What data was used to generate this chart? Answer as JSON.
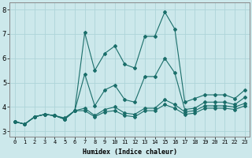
{
  "xlabel": "Humidex (Indice chaleur)",
  "ylabel": "",
  "xlim": [
    -0.5,
    23.5
  ],
  "ylim": [
    2.8,
    8.3
  ],
  "xticks": [
    0,
    1,
    2,
    3,
    4,
    5,
    6,
    7,
    8,
    9,
    10,
    11,
    12,
    13,
    14,
    15,
    16,
    17,
    18,
    19,
    20,
    21,
    22,
    23
  ],
  "yticks": [
    3,
    4,
    5,
    6,
    7,
    8
  ],
  "bg_color": "#cce8eb",
  "grid_color": "#aed4d8",
  "line_color": "#1a6e6a",
  "series": [
    [
      3.4,
      3.3,
      3.6,
      3.7,
      3.65,
      3.55,
      3.85,
      7.05,
      5.5,
      6.2,
      6.5,
      5.75,
      5.6,
      6.9,
      6.9,
      7.9,
      7.2,
      4.2,
      4.35,
      4.5,
      4.5,
      4.5,
      4.35,
      4.7
    ],
    [
      3.4,
      3.3,
      3.6,
      3.7,
      3.65,
      3.5,
      3.85,
      5.35,
      4.05,
      4.7,
      4.9,
      4.3,
      4.2,
      5.25,
      5.25,
      6.0,
      5.4,
      3.9,
      3.95,
      4.2,
      4.2,
      4.2,
      4.1,
      4.4
    ],
    [
      3.4,
      3.3,
      3.6,
      3.7,
      3.65,
      3.5,
      3.85,
      3.95,
      3.65,
      3.9,
      4.0,
      3.75,
      3.7,
      3.95,
      3.95,
      4.3,
      4.1,
      3.8,
      3.85,
      4.05,
      4.05,
      4.05,
      4.0,
      4.15
    ],
    [
      3.4,
      3.3,
      3.6,
      3.7,
      3.65,
      3.5,
      3.85,
      3.85,
      3.6,
      3.8,
      3.85,
      3.65,
      3.6,
      3.85,
      3.85,
      4.1,
      3.95,
      3.7,
      3.75,
      3.95,
      3.95,
      3.95,
      3.9,
      4.05
    ]
  ]
}
